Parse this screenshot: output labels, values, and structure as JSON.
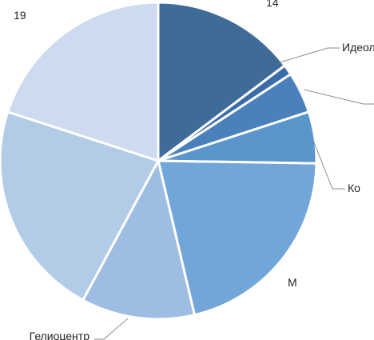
{
  "chart_data": {
    "type": "pie",
    "title": "",
    "slices": [
      {
        "label": "",
        "value": 14,
        "value_label": "14",
        "color": "#3f6b99"
      },
      {
        "label": "Идеол",
        "value": 1,
        "value_label": "",
        "color": "#3a6ca7"
      },
      {
        "label": "",
        "value": 4,
        "value_label": "",
        "color": "#4a80bb"
      },
      {
        "label": "Ко",
        "value": 5,
        "value_label": "",
        "color": "#5a95cc"
      },
      {
        "label": "М",
        "value": 20,
        "value_label": "",
        "color": "#72a6d8"
      },
      {
        "label": "Гелиоцентр",
        "value": 11,
        "value_label": "",
        "color": "#9dbde3"
      },
      {
        "label": "",
        "value": 21,
        "value_label": "",
        "color": "#b2cbe6"
      },
      {
        "label": "",
        "value": 19,
        "value_label": "19",
        "color": "#cddaef"
      }
    ]
  }
}
